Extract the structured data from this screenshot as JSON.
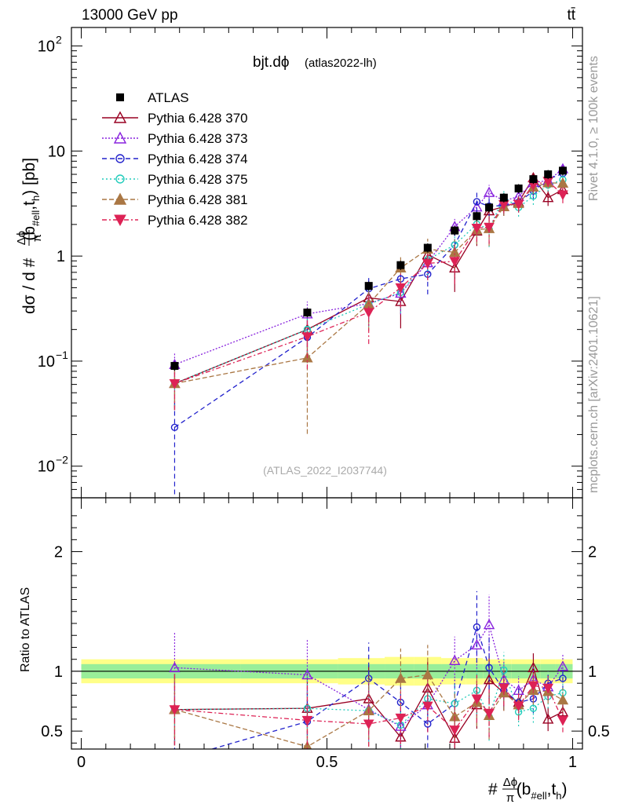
{
  "header": {
    "energy_label": "13000 GeV pp",
    "process_label": "tt̄"
  },
  "side_texts": {
    "rivet": "Rivet 4.1.0, ≥ 100k events",
    "mcplots": "mcplots.cern.ch [arXiv:2401.10621]"
  },
  "chart_data": {
    "type": "scatter",
    "title": "bjt.dϕ",
    "title_suffix": "(atlas2022-lh)",
    "analysis_label": "(ATLAS_2022_I2037744)",
    "ylabel": "dσ / d #Δϕ/π(b#ell,th) [pb]",
    "ylabel_parts": {
      "prefix": "dσ / d #",
      "num": "Δϕ",
      "den": "π",
      "arg": "(b",
      "sub1": "#ell",
      "mid": ",t",
      "sub2": "h",
      "end": ") [pb]"
    },
    "xlabel_parts": {
      "prefix": "#",
      "num": "Δϕ",
      "den": "π",
      "arg": "(b",
      "sub1": "#ell",
      "mid": ",t",
      "sub2": "h",
      "end": ")"
    },
    "xlim": [
      -0.02,
      1.02
    ],
    "ylim_main": [
      0.005,
      150
    ],
    "ylim_ratio": [
      0.35,
      2.45
    ],
    "ratio_ylabel": "Ratio to ATLAS",
    "x_ticks": [
      {
        "v": 0,
        "label": "0"
      },
      {
        "v": 0.5,
        "label": "0.5"
      },
      {
        "v": 1,
        "label": "1"
      }
    ],
    "y_ticks_main": [
      {
        "v": 0.01,
        "base": "10",
        "exp": "−2"
      },
      {
        "v": 0.1,
        "base": "10",
        "exp": "−1"
      },
      {
        "v": 1,
        "base": "1",
        "exp": ""
      },
      {
        "v": 10,
        "base": "10",
        "exp": ""
      },
      {
        "v": 100,
        "base": "10",
        "exp": "2"
      }
    ],
    "y_ticks_ratio": [
      {
        "v": 0.5,
        "label": "0.5"
      },
      {
        "v": 1,
        "label": "1"
      },
      {
        "v": 2,
        "label": "2"
      }
    ],
    "x": [
      0.19,
      0.46,
      0.585,
      0.65,
      0.705,
      0.76,
      0.805,
      0.83,
      0.86,
      0.89,
      0.92,
      0.95,
      0.98
    ],
    "data": {
      "name": "ATLAS",
      "values": [
        0.09,
        0.29,
        0.52,
        0.82,
        1.2,
        1.75,
        2.4,
        2.9,
        3.6,
        4.4,
        5.4,
        6.0,
        6.5
      ],
      "band_inner": [
        0.06,
        0.06,
        0.06,
        0.06,
        0.06,
        0.06,
        0.06,
        0.06,
        0.06,
        0.06,
        0.06,
        0.06,
        0.06
      ],
      "band_outer": [
        0.1,
        0.1,
        0.11,
        0.12,
        0.12,
        0.11,
        0.11,
        0.1,
        0.1,
        0.1,
        0.1,
        0.1,
        0.1
      ]
    },
    "series": [
      {
        "name": "Pythia 6.428 370",
        "color": "#990022",
        "marker": "tri-open",
        "dash": "",
        "ratio": [
          0.68,
          0.69,
          0.77,
          0.45,
          0.86,
          0.44,
          0.72,
          0.93,
          0.82,
          0.74,
          1.03,
          0.6,
          0.66
        ],
        "err": [
          0.3,
          0.3,
          0.28,
          0.2,
          0.22,
          0.18,
          0.2,
          0.2,
          0.15,
          0.12,
          0.12,
          0.1,
          0.1
        ]
      },
      {
        "name": "Pythia 6.428 373",
        "color": "#8822dd",
        "marker": "tri-open",
        "dash": "2,2",
        "ratio": [
          1.03,
          0.97,
          0.68,
          0.54,
          0.72,
          1.09,
          1.22,
          1.39,
          0.93,
          0.84,
          0.93,
          0.87,
          1.04
        ],
        "err": [
          0.3,
          0.3,
          0.26,
          0.2,
          0.22,
          0.2,
          0.2,
          0.25,
          0.15,
          0.12,
          0.12,
          0.1,
          0.1
        ]
      },
      {
        "name": "Pythia 6.428 374",
        "color": "#2222cc",
        "marker": "circ-open",
        "dash": "6,4",
        "ratio": [
          0.26,
          0.58,
          0.94,
          0.74,
          0.56,
          0.73,
          1.37,
          1.03,
          0.84,
          0.74,
          0.77,
          0.9,
          0.94
        ],
        "err": [
          0.2,
          0.25,
          0.3,
          0.22,
          0.2,
          0.2,
          0.3,
          0.25,
          0.16,
          0.12,
          0.12,
          0.1,
          0.1
        ]
      },
      {
        "name": "Pythia 6.428 375",
        "color": "#22ccbb",
        "marker": "circ-open",
        "dash": "2,3",
        "ratio": [
          0.68,
          0.69,
          0.67,
          0.55,
          0.77,
          0.73,
          0.84,
          0.62,
          1.01,
          0.66,
          0.69,
          0.79,
          0.82
        ],
        "err": [
          0.3,
          0.3,
          0.26,
          0.2,
          0.22,
          0.18,
          0.2,
          0.2,
          0.15,
          0.12,
          0.12,
          0.1,
          0.1
        ]
      },
      {
        "name": "Pythia 6.428 381",
        "color": "#aa7744",
        "marker": "tri-solid",
        "dash": "6,3",
        "ratio": [
          0.68,
          0.37,
          0.67,
          0.94,
          0.97,
          0.62,
          0.74,
          0.63,
          0.82,
          0.72,
          0.84,
          0.83,
          0.76
        ],
        "err": [
          0.3,
          0.3,
          0.3,
          0.25,
          0.25,
          0.2,
          0.2,
          0.2,
          0.15,
          0.12,
          0.12,
          0.1,
          0.1
        ]
      },
      {
        "name": "Pythia 6.428 382",
        "color": "#dd2255",
        "marker": "tri-down",
        "dash": "6,3,2,3",
        "ratio": [
          0.68,
          0.59,
          0.56,
          0.61,
          0.71,
          0.51,
          0.77,
          0.65,
          0.86,
          0.71,
          0.88,
          0.86,
          0.59
        ],
        "err": [
          0.3,
          0.3,
          0.28,
          0.22,
          0.22,
          0.2,
          0.2,
          0.2,
          0.15,
          0.12,
          0.12,
          0.1,
          0.1
        ]
      }
    ]
  }
}
